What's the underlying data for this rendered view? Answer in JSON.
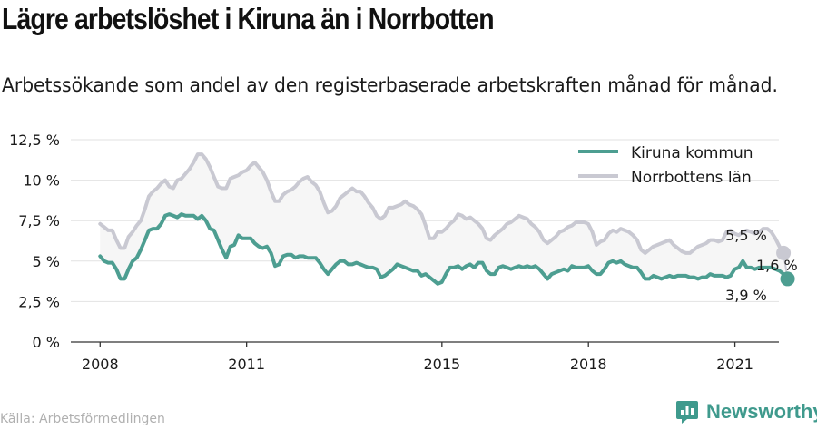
{
  "title": "Lägre arbetslöshet i Kiruna än i Norrbotten",
  "subtitle": "Arbetssökande som andel av den registerbaserade arbetskraften månad för månad.",
  "source": "Källa: Arbetsförmedlingen",
  "brand": {
    "name": "Newsworthy",
    "logo_icon": "newsworthy-logo-icon"
  },
  "colors": {
    "kiruna": "#4d9e91",
    "norrbotten": "#c9c9d2",
    "band": "#f6f6f6",
    "grid": "#e2e2e2"
  },
  "chart_data": {
    "type": "line",
    "title": "Lägre arbetslöshet i Kiruna än i Norrbotten",
    "subtitle": "Arbetssökande som andel av den registerbaserade arbetskraften månad för månad.",
    "x_start": 2008.0,
    "x_step": 0.0833,
    "xlim": [
      2007.4,
      2021.9
    ],
    "ylim": [
      0,
      12.5
    ],
    "x_ticks": [
      2008,
      2011,
      2015,
      2018,
      2021
    ],
    "x_tick_labels": [
      "2008",
      "2011",
      "2015",
      "2018",
      "2021"
    ],
    "y_ticks": [
      0,
      2.5,
      5,
      7.5,
      10,
      12.5
    ],
    "y_tick_labels": [
      "0 %",
      "2,5 %",
      "5 %",
      "7,5 %",
      "10 %",
      "12,5 %"
    ],
    "grid": true,
    "legend_position": "top-right",
    "series": [
      {
        "name": "Kiruna kommun",
        "color": "#4d9e91",
        "values": [
          5.3,
          5.0,
          4.9,
          4.9,
          4.5,
          3.9,
          3.9,
          4.5,
          5.0,
          5.2,
          5.7,
          6.3,
          6.9,
          7.0,
          7.0,
          7.3,
          7.8,
          7.9,
          7.8,
          7.7,
          7.9,
          7.8,
          7.8,
          7.8,
          7.6,
          7.8,
          7.5,
          7.0,
          6.9,
          6.3,
          5.7,
          5.2,
          5.9,
          6.0,
          6.6,
          6.4,
          6.4,
          6.4,
          6.1,
          5.9,
          5.8,
          5.9,
          5.5,
          4.7,
          4.8,
          5.3,
          5.4,
          5.4,
          5.2,
          5.3,
          5.3,
          5.2,
          5.2,
          5.2,
          4.9,
          4.5,
          4.2,
          4.5,
          4.8,
          5.0,
          5.0,
          4.8,
          4.8,
          4.9,
          4.8,
          4.7,
          4.6,
          4.6,
          4.5,
          4.0,
          4.1,
          4.3,
          4.5,
          4.8,
          4.7,
          4.6,
          4.5,
          4.4,
          4.4,
          4.1,
          4.2,
          4.0,
          3.8,
          3.6,
          3.7,
          4.2,
          4.6,
          4.6,
          4.7,
          4.5,
          4.7,
          4.8,
          4.6,
          4.9,
          4.9,
          4.4,
          4.2,
          4.2,
          4.6,
          4.7,
          4.6,
          4.5,
          4.6,
          4.7,
          4.6,
          4.7,
          4.6,
          4.7,
          4.5,
          4.2,
          3.9,
          4.2,
          4.3,
          4.4,
          4.5,
          4.4,
          4.7,
          4.6,
          4.6,
          4.6,
          4.7,
          4.4,
          4.2,
          4.2,
          4.5,
          4.9,
          5.0,
          4.9,
          5.0,
          4.8,
          4.7,
          4.6,
          4.6,
          4.3,
          3.9,
          3.9,
          4.1,
          4.0,
          3.9,
          4.0,
          4.1,
          4.0,
          4.1,
          4.1,
          4.1,
          4.0,
          4.0,
          3.9,
          4.0,
          4.0,
          4.2,
          4.1,
          4.1,
          4.1,
          4.0,
          4.1,
          4.5,
          4.6,
          5.0,
          4.6,
          4.6,
          4.5,
          4.6,
          4.6,
          4.6,
          4.6,
          4.5,
          4.4,
          4.2,
          3.9
        ]
      },
      {
        "name": "Norrbottens län",
        "color": "#c9c9d2",
        "values": [
          7.3,
          7.1,
          6.9,
          6.9,
          6.3,
          5.8,
          5.8,
          6.5,
          6.8,
          7.2,
          7.5,
          8.2,
          9.0,
          9.3,
          9.5,
          9.8,
          10.0,
          9.6,
          9.5,
          10.0,
          10.1,
          10.4,
          10.7,
          11.1,
          11.6,
          11.6,
          11.3,
          10.8,
          10.2,
          9.6,
          9.5,
          9.5,
          10.1,
          10.2,
          10.3,
          10.5,
          10.6,
          10.9,
          11.1,
          10.8,
          10.5,
          10.0,
          9.3,
          8.7,
          8.7,
          9.1,
          9.3,
          9.4,
          9.6,
          9.9,
          10.1,
          10.2,
          9.9,
          9.7,
          9.3,
          8.6,
          8.0,
          8.1,
          8.4,
          8.9,
          9.1,
          9.3,
          9.5,
          9.3,
          9.3,
          9.0,
          8.6,
          8.3,
          7.8,
          7.6,
          7.8,
          8.3,
          8.3,
          8.4,
          8.5,
          8.7,
          8.5,
          8.4,
          8.2,
          7.9,
          7.2,
          6.4,
          6.4,
          6.8,
          6.8,
          7.0,
          7.3,
          7.5,
          7.9,
          7.8,
          7.6,
          7.7,
          7.5,
          7.3,
          7.0,
          6.4,
          6.3,
          6.6,
          6.8,
          7.0,
          7.3,
          7.4,
          7.6,
          7.8,
          7.7,
          7.6,
          7.3,
          7.1,
          6.8,
          6.3,
          6.1,
          6.3,
          6.5,
          6.8,
          6.9,
          7.1,
          7.2,
          7.4,
          7.4,
          7.4,
          7.3,
          6.8,
          6.0,
          6.2,
          6.3,
          6.7,
          6.9,
          6.8,
          7.0,
          6.9,
          6.8,
          6.6,
          6.3,
          5.7,
          5.5,
          5.7,
          5.9,
          6.0,
          6.1,
          6.2,
          6.3,
          6.0,
          5.8,
          5.6,
          5.5,
          5.5,
          5.7,
          5.9,
          6.0,
          6.1,
          6.3,
          6.3,
          6.2,
          6.3,
          6.8,
          6.9,
          6.7,
          6.6,
          6.8,
          6.9,
          6.8,
          6.7,
          6.8,
          7.0,
          7.0,
          6.8,
          6.4,
          5.9,
          5.5
        ]
      }
    ],
    "annotations": {
      "norrbotten_end": "5,5 %",
      "difference": "1,6 %",
      "kiruna_end": "3,9 %"
    }
  }
}
